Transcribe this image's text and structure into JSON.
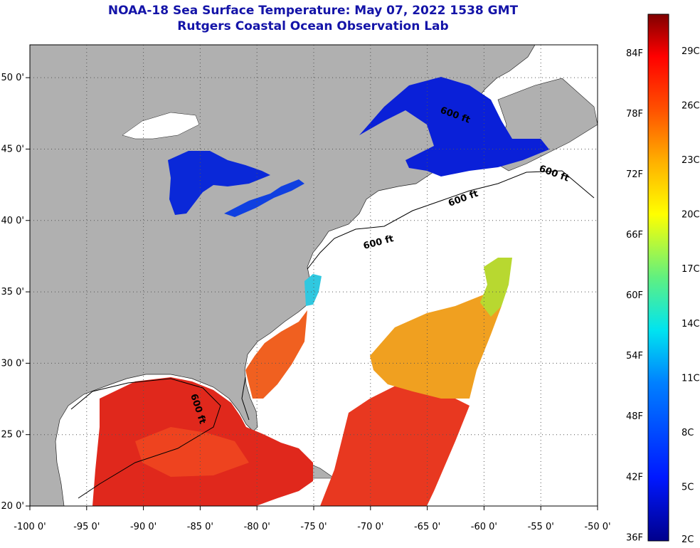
{
  "title": "NOAA-18 Sea Surface Temperature:  May 07, 2022 1538 GMT",
  "subtitle": "Rutgers Coastal Ocean Observation Lab",
  "map": {
    "lon_range": [
      -100,
      -50
    ],
    "lat_range": [
      20,
      52.3
    ],
    "grid": "dotted",
    "lon_ticks": [
      {
        "value": -100,
        "label": "-100 0'"
      },
      {
        "value": -95,
        "label": "-95 0'"
      },
      {
        "value": -90,
        "label": "-90 0'"
      },
      {
        "value": -85,
        "label": "-85 0'"
      },
      {
        "value": -80,
        "label": "-80 0'"
      },
      {
        "value": -75,
        "label": "-75 0'"
      },
      {
        "value": -70,
        "label": "-70 0'"
      },
      {
        "value": -65,
        "label": "-65 0'"
      },
      {
        "value": -60,
        "label": "-60 0'"
      },
      {
        "value": -55,
        "label": "-55 0'"
      },
      {
        "value": -50,
        "label": "-50 0'"
      }
    ],
    "lat_ticks": [
      {
        "value": 20,
        "label": "20 0'"
      },
      {
        "value": 25,
        "label": "25 0'"
      },
      {
        "value": 30,
        "label": "30 0'"
      },
      {
        "value": 35,
        "label": "35 0'"
      },
      {
        "value": 40,
        "label": "40 0'"
      },
      {
        "value": 45,
        "label": "45 0'"
      },
      {
        "value": 50,
        "label": "50 0'"
      }
    ],
    "contour_label": "600 ft",
    "colors": {
      "land": "#b0b0b0",
      "no_data": "#ffffff",
      "cold": "#0a20d8",
      "warm": "#e0281c"
    }
  },
  "colorbar": {
    "min_c": 2,
    "max_c": 31,
    "fahrenheit_labels": [
      "84F",
      "78F",
      "72F",
      "66F",
      "60F",
      "54F",
      "48F",
      "42F",
      "36F"
    ],
    "celsius_labels": [
      "29C",
      "26C",
      "23C",
      "20C",
      "17C",
      "14C",
      "11C",
      "8C",
      "5C",
      "2C"
    ]
  }
}
